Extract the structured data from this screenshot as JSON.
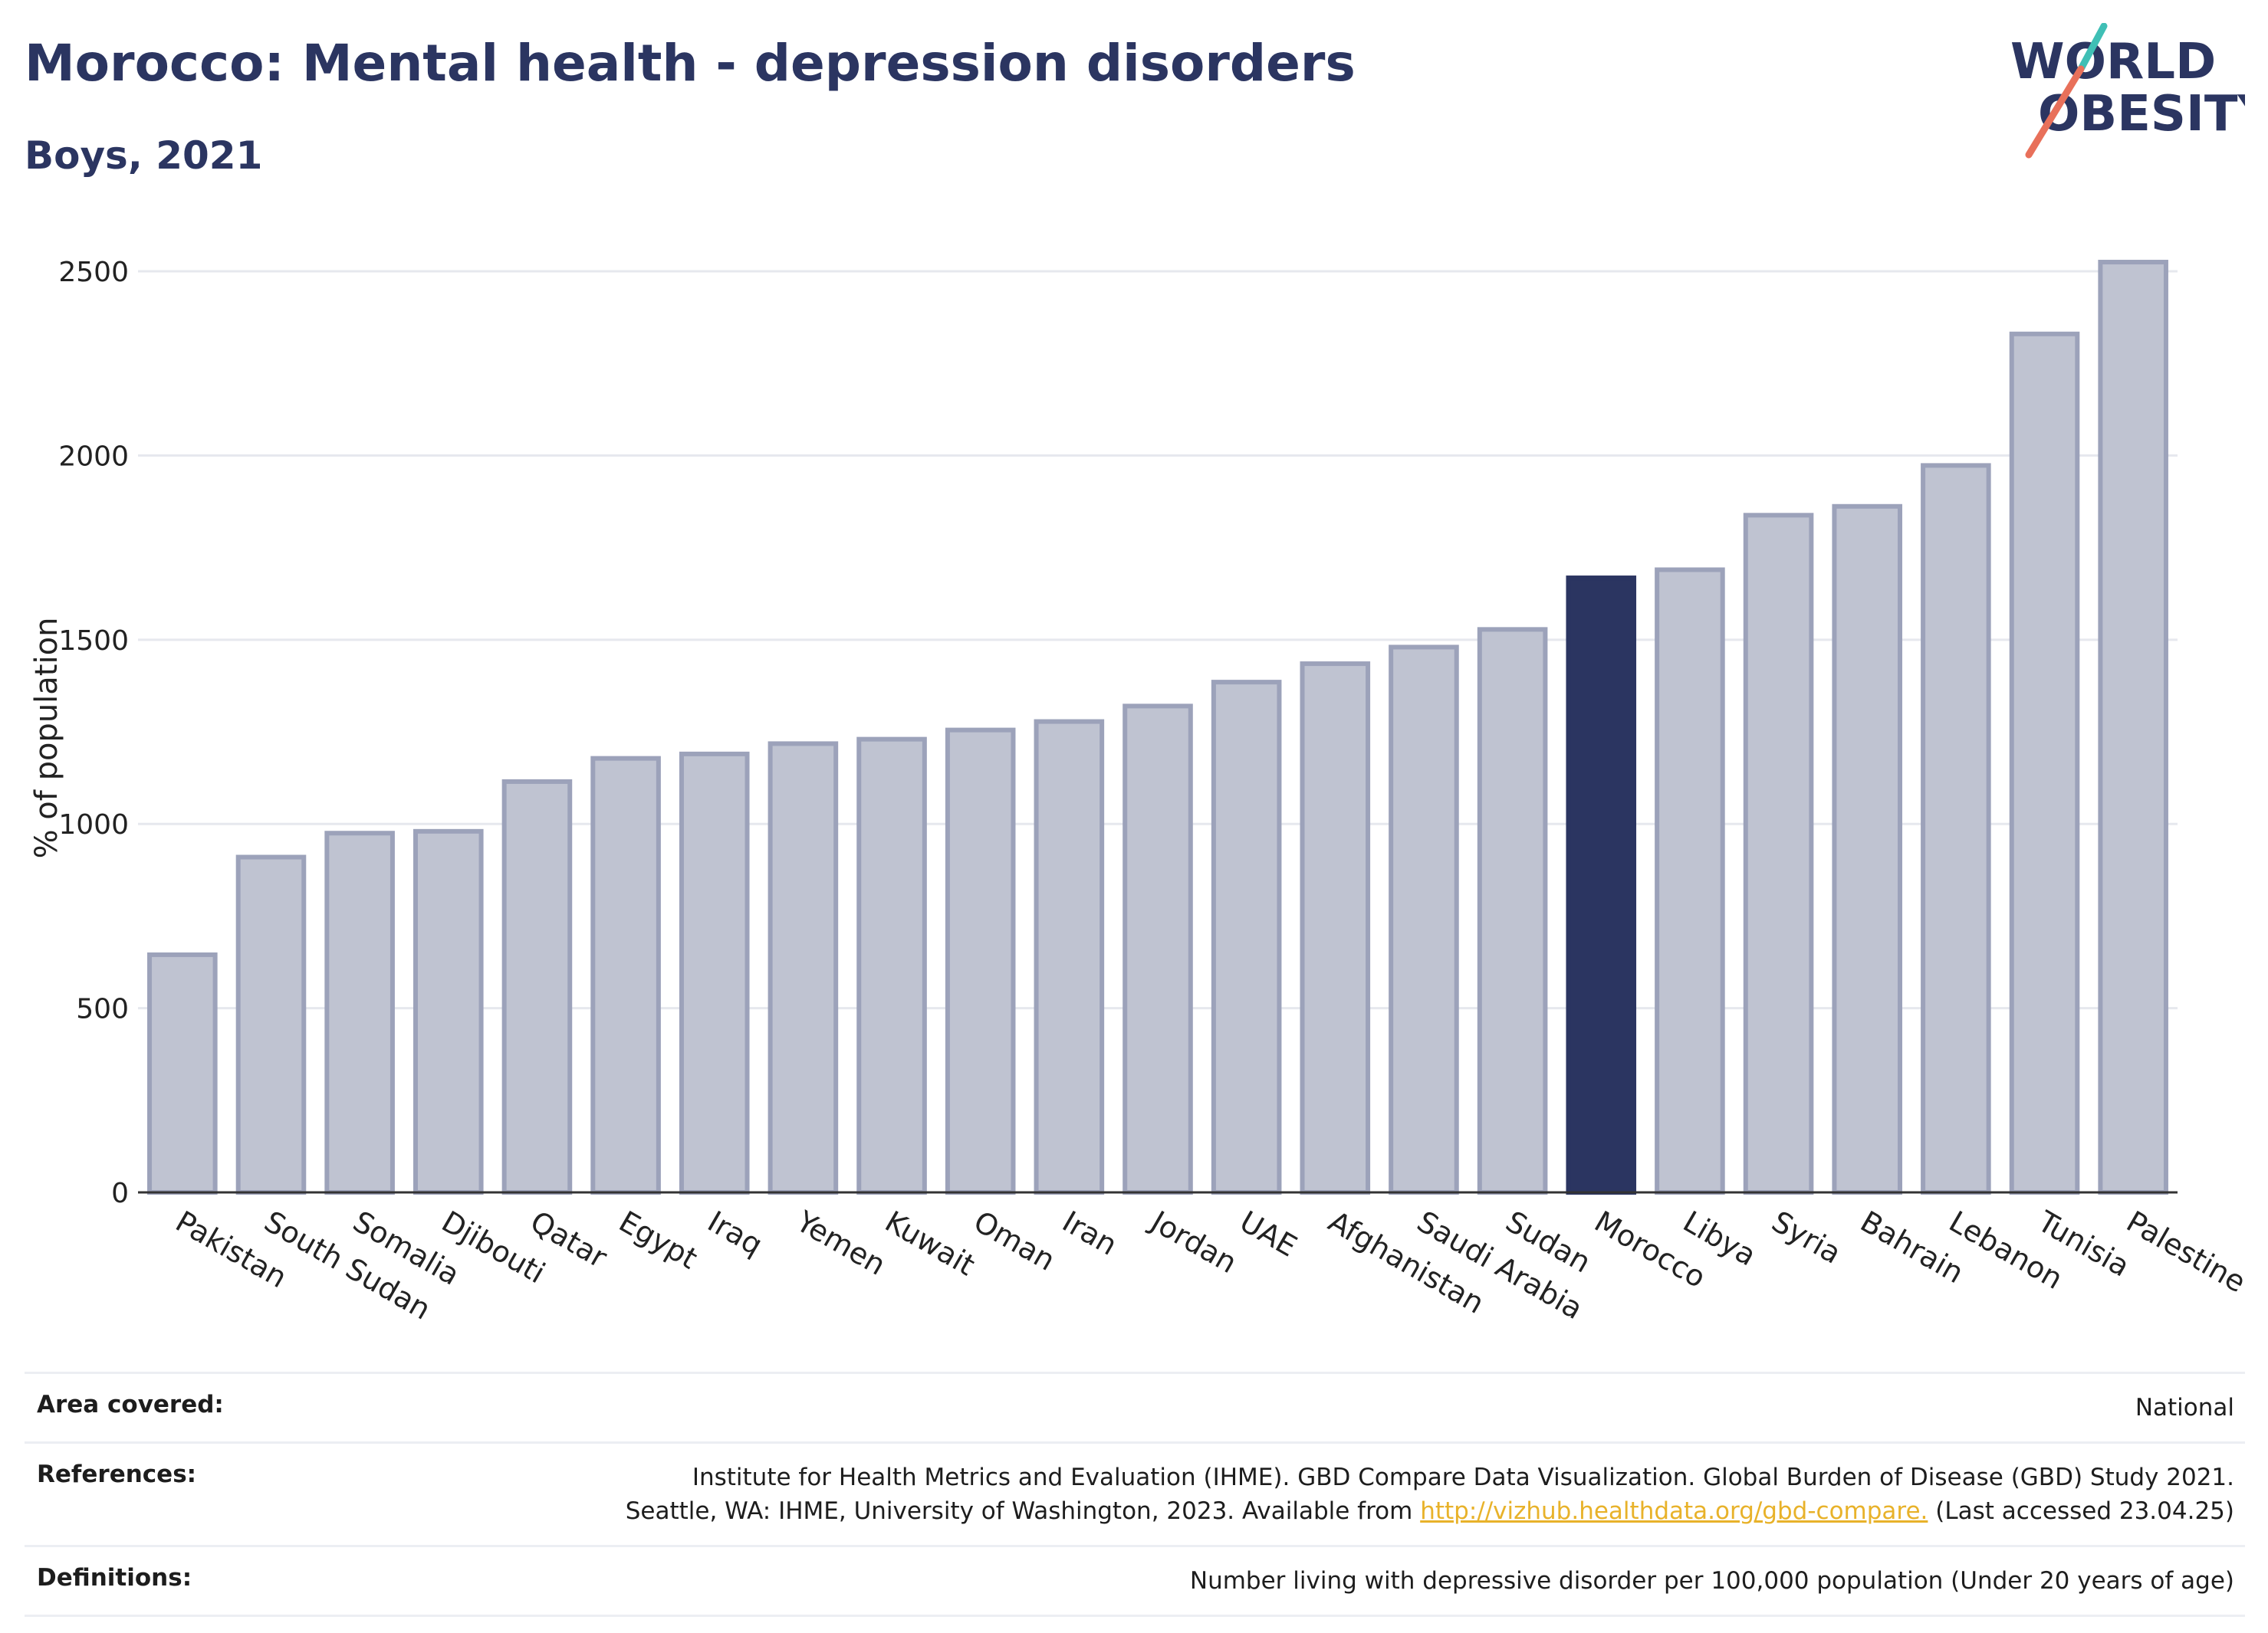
{
  "header": {
    "title": "Morocco: Mental health - depression disorders",
    "subtitle": "Boys, 2021",
    "logo": {
      "line1": "WORLD",
      "line2": "OBESITY"
    }
  },
  "colors": {
    "highlight": "#2b3561",
    "bar_fill": "#bfc3d1",
    "bar_stroke": "#9ca2ba",
    "grid": "#e6e8ee",
    "logo_teal": "#3fbfb5",
    "logo_coral": "#e8705a",
    "link": "#e8b22a"
  },
  "chart_data": {
    "type": "bar",
    "ylabel": "% of population",
    "xlabel": "",
    "ylim": [
      0,
      2550
    ],
    "yticks": [
      0,
      500,
      1000,
      1500,
      2000,
      2500
    ],
    "grid": true,
    "highlight": "Morocco",
    "categories": [
      "Pakistan",
      "South Sudan",
      "Somalia",
      "Djibouti",
      "Qatar",
      "Egypt",
      "Iraq",
      "Yemen",
      "Kuwait",
      "Oman",
      "Iran",
      "Jordan",
      "UAE",
      "Afghanistan",
      "Saudi Arabia",
      "Sudan",
      "Morocco",
      "Libya",
      "Syria",
      "Bahrain",
      "Lebanon",
      "Tunisia",
      "Palestine"
    ],
    "values": [
      645,
      910,
      975,
      980,
      1115,
      1178,
      1190,
      1218,
      1230,
      1255,
      1278,
      1320,
      1385,
      1435,
      1480,
      1528,
      1668,
      1690,
      1838,
      1862,
      1973,
      2330,
      2525
    ]
  },
  "info": {
    "area_label": "Area covered:",
    "area_value": "National",
    "references_label": "References:",
    "references_line1": "Institute for Health Metrics and Evaluation (IHME). GBD Compare Data Visualization. Global Burden of Disease (GBD) Study 2021.",
    "references_line2_pre": "Seattle, WA: IHME, University of Washington, 2023. Available from",
    "references_link": "http://vizhub.healthdata.org/gbd-compare.",
    "references_line2_post": "(Last accessed 23.04.25)",
    "definitions_label": "Definitions:",
    "definitions_value": "Number living with depressive disorder per 100,000 population (Under 20 years of age)"
  }
}
